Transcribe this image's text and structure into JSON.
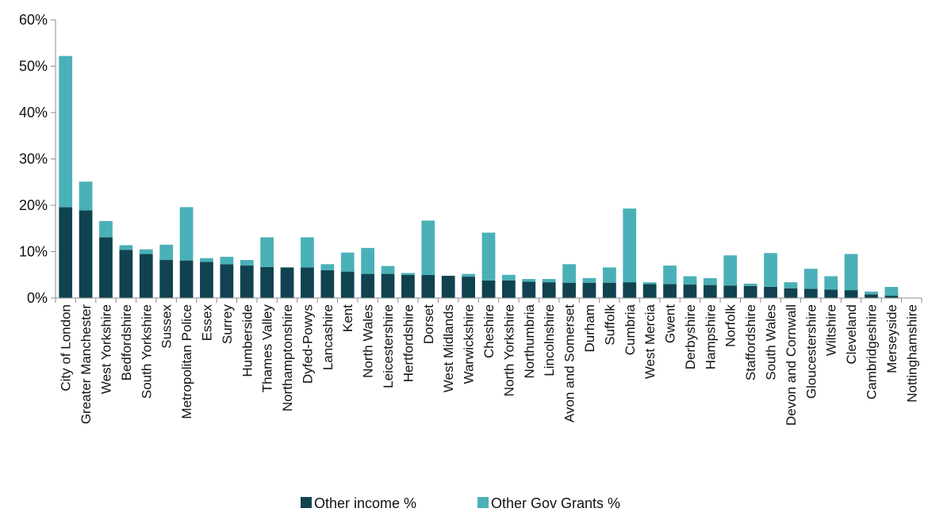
{
  "chart_data": {
    "type": "bar",
    "stacked": true,
    "categories": [
      "City of London",
      "Greater Manchester",
      "West Yorkshire",
      "Bedfordshire",
      "South Yorkshire",
      "Sussex",
      "Metropolitan Police",
      "Essex",
      "Surrey",
      "Humberside",
      "Thames Valley",
      "Northamptonshire",
      "Dyfed-Powys",
      "Lancashire",
      "Kent",
      "North Wales",
      "Leicestershire",
      "Hertfordshire",
      "Dorset",
      "West Midlands",
      "Warwickshire",
      "Cheshire",
      "North Yorkshire",
      "Northumbria",
      "Lincolnshire",
      "Avon and Somerset",
      "Durham",
      "Suffolk",
      "Cumbria",
      "West Mercia",
      "Gwent",
      "Derbyshire",
      "Hampshire",
      "Norfolk",
      "Staffordshire",
      "South Wales",
      "Devon and Cornwall",
      "Gloucestershire",
      "Wiltshire",
      "Cleveland",
      "Cambridgeshire",
      "Merseyside",
      "Nottinghamshire"
    ],
    "series": [
      {
        "name": "Other income %",
        "color": "#10434f",
        "values": [
          19.6,
          18.9,
          13.1,
          10.4,
          9.5,
          8.2,
          8.1,
          7.8,
          7.3,
          7.0,
          6.7,
          6.6,
          6.6,
          6.0,
          5.7,
          5.2,
          5.2,
          5.0,
          5.0,
          4.8,
          4.6,
          3.8,
          3.8,
          3.5,
          3.4,
          3.3,
          3.3,
          3.3,
          3.4,
          3.0,
          3.0,
          2.9,
          2.8,
          2.7,
          2.6,
          2.4,
          2.1,
          2.0,
          1.8,
          1.7,
          0.8,
          0.5,
          0.0
        ]
      },
      {
        "name": "Other Gov Grants %",
        "color": "#4ab0b7",
        "values": [
          32.6,
          6.2,
          3.5,
          1.0,
          1.0,
          3.3,
          11.5,
          0.8,
          1.6,
          1.2,
          6.4,
          0.0,
          6.5,
          1.3,
          4.1,
          5.6,
          1.7,
          0.4,
          11.7,
          0.0,
          0.6,
          10.3,
          1.2,
          0.6,
          0.7,
          4.0,
          1.0,
          3.3,
          15.9,
          0.4,
          4.0,
          1.8,
          1.5,
          6.5,
          0.5,
          7.3,
          1.3,
          4.3,
          2.9,
          7.8,
          0.6,
          1.9,
          0.0
        ]
      }
    ],
    "ylim": [
      0,
      60
    ],
    "yticks": [
      "0%",
      "10%",
      "20%",
      "30%",
      "40%",
      "50%",
      "60%"
    ],
    "ytick_values": [
      0,
      10,
      20,
      30,
      40,
      50,
      60
    ],
    "grid": false,
    "legend_position": "bottom",
    "title": "",
    "xlabel": "",
    "ylabel": ""
  }
}
